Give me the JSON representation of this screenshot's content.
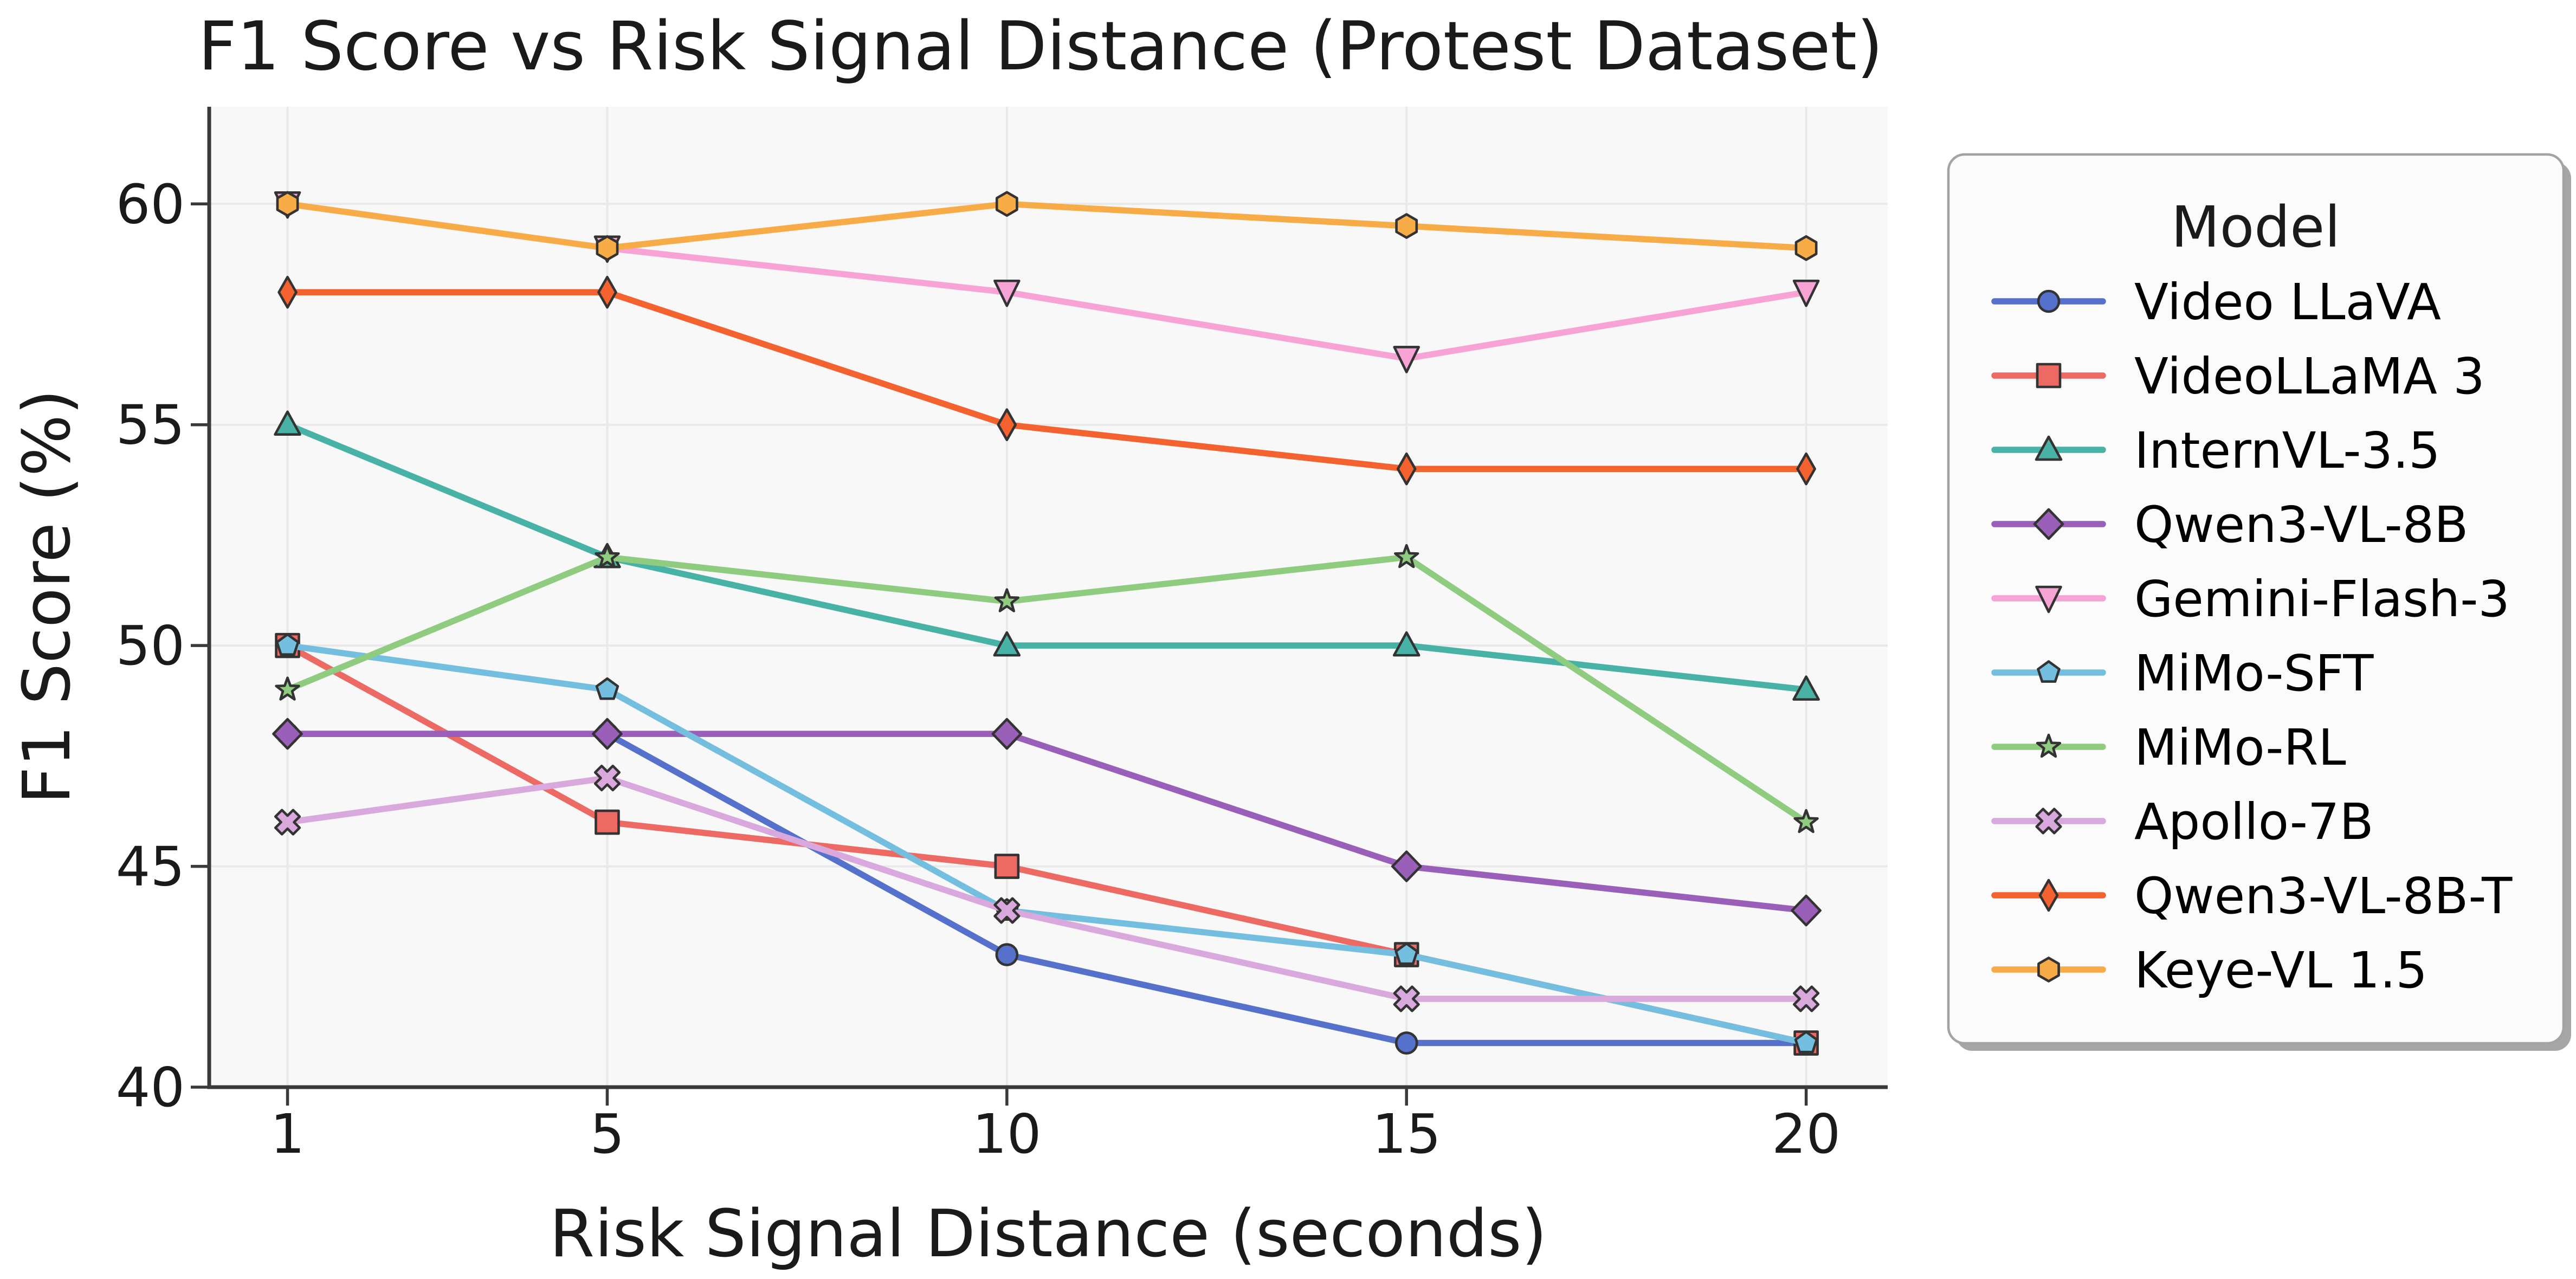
{
  "chart_data": {
    "type": "line",
    "title": "F1 Score vs Risk Signal Distance (Protest Dataset)",
    "xlabel": "Risk Signal Distance (seconds)",
    "ylabel": "F1 Score (%)",
    "x": [
      1,
      5,
      10,
      15,
      20
    ],
    "xticks": [
      "1",
      "5",
      "10",
      "15",
      "20"
    ],
    "yticks": [
      "40",
      "45",
      "50",
      "55",
      "60"
    ],
    "ytick_values": [
      40,
      45,
      50,
      55,
      60
    ],
    "xlim": [
      0.02,
      21.02
    ],
    "ylim": [
      40,
      62.2
    ],
    "grid": true,
    "legend": {
      "title": "Model",
      "position": "right-outside"
    },
    "series": [
      {
        "name": "Video LLaVA",
        "color": "#5571CC",
        "marker": "circle",
        "values": [
          48,
          48,
          43,
          41,
          41
        ]
      },
      {
        "name": "VideoLLaMA 3",
        "color": "#ED6A64",
        "marker": "square",
        "values": [
          50,
          46,
          45,
          43,
          41
        ]
      },
      {
        "name": "InternVL-3.5",
        "color": "#49B2A6",
        "marker": "triangle-up",
        "values": [
          55,
          52,
          50,
          50,
          49
        ]
      },
      {
        "name": "Qwen3-VL-8B",
        "color": "#9A5FB8",
        "marker": "diamond",
        "values": [
          48,
          48,
          48,
          45,
          44
        ]
      },
      {
        "name": "Gemini-Flash-3",
        "color": "#F7A3D5",
        "marker": "triangle-down",
        "values": [
          60,
          59,
          58,
          56.5,
          58
        ]
      },
      {
        "name": "MiMo-SFT",
        "color": "#74BFDF",
        "marker": "pentagon",
        "values": [
          50,
          49,
          44,
          43,
          41
        ]
      },
      {
        "name": "MiMo-RL",
        "color": "#8FCC80",
        "marker": "star",
        "values": [
          49,
          52,
          51,
          52,
          46
        ]
      },
      {
        "name": "Apollo-7B",
        "color": "#D9A8DC",
        "marker": "x",
        "values": [
          46,
          47,
          44,
          42,
          42
        ]
      },
      {
        "name": "Qwen3-VL-8B-T",
        "color": "#F4632F",
        "marker": "thin-diamond",
        "values": [
          58,
          58,
          55,
          54,
          54
        ]
      },
      {
        "name": "Keye-VL 1.5",
        "color": "#F8AC48",
        "marker": "hexagon",
        "values": [
          60,
          59,
          60,
          59.5,
          59
        ]
      }
    ]
  },
  "style": {
    "plot_bg": "#F8F8F8",
    "grid_color": "#E9E9E9",
    "spine_color": "#3A3A3A",
    "marker_edge": "#333333",
    "text_color": "#1A1A1A",
    "legend_bg": "#FBFBFB",
    "legend_border": "#A3A3A3",
    "legend_shadow": "#A6A6A6"
  }
}
